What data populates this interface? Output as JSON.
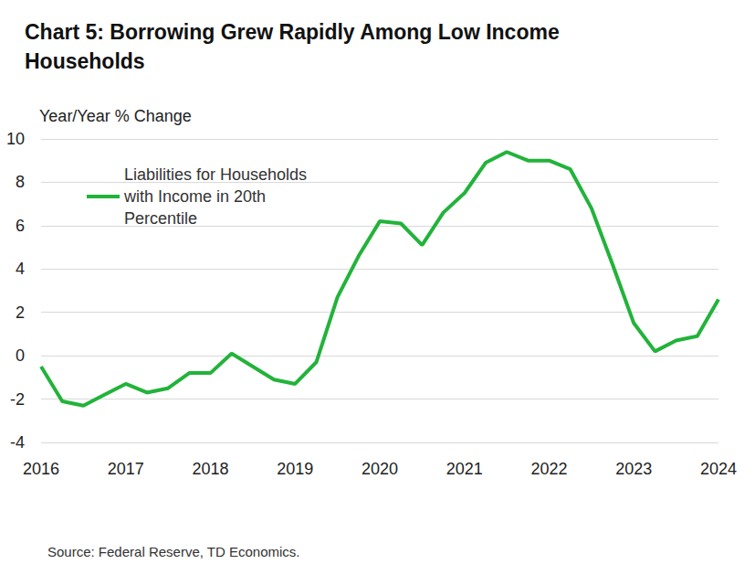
{
  "chart_data": {
    "type": "line",
    "title": "Chart 5: Borrowing Grew Rapidly Among Low Income Households",
    "y_label": "Year/Year % Change",
    "source": "Source: Federal Reserve, TD Economics.",
    "categories": [
      "2016",
      null,
      null,
      null,
      "2017",
      null,
      null,
      null,
      "2018",
      null,
      null,
      null,
      "2019",
      null,
      null,
      null,
      "2020",
      null,
      null,
      null,
      "2021",
      null,
      null,
      null,
      "2022",
      null,
      null,
      null,
      "2023",
      null,
      null,
      null,
      "2024"
    ],
    "series": [
      {
        "name": "Liabilities for Households with Income in 20th Percentile",
        "color": "#22b33a",
        "values": [
          -0.5,
          -2.1,
          -2.3,
          -1.8,
          -1.3,
          -1.7,
          -1.5,
          -0.8,
          -0.8,
          0.1,
          -0.5,
          -1.1,
          -1.3,
          -0.3,
          2.7,
          4.6,
          6.2,
          6.1,
          5.1,
          6.6,
          7.5,
          8.9,
          9.4,
          9.0,
          9.0,
          8.6,
          6.8,
          4.2,
          1.5,
          0.2,
          0.7,
          0.9,
          2.6
        ]
      }
    ],
    "ylim": [
      -4,
      10
    ],
    "yticks": [
      -4,
      -2,
      0,
      2,
      4,
      6,
      8,
      10
    ],
    "grid": true,
    "legend": "top-left"
  }
}
